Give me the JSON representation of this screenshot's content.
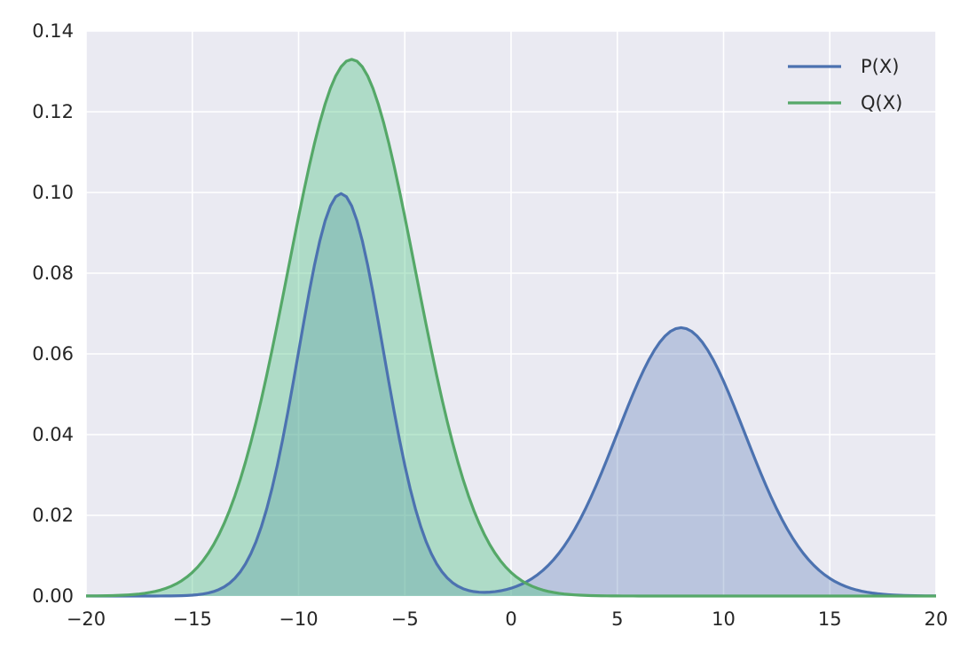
{
  "chart_data": {
    "type": "area",
    "xlim": [
      -20,
      20
    ],
    "ylim": [
      0,
      0.14
    ],
    "xticks": [
      -20,
      -15,
      -10,
      -5,
      0,
      5,
      10,
      15,
      20
    ],
    "xtick_labels": [
      "−20",
      "−15",
      "−10",
      "−5",
      "0",
      "5",
      "10",
      "15",
      "20"
    ],
    "yticks": [
      0.0,
      0.02,
      0.04,
      0.06,
      0.08,
      0.1,
      0.12,
      0.14
    ],
    "ytick_labels": [
      "0.00",
      "0.02",
      "0.04",
      "0.06",
      "0.08",
      "0.10",
      "0.12",
      "0.14"
    ],
    "grid": true,
    "legend_position": "top-right",
    "background": "#eaeaf2",
    "x_sampling": {
      "start": -20,
      "stop": 20,
      "step": 0.25
    },
    "series": [
      {
        "name": "P(X)",
        "color": "#4c72b0",
        "fill": "#4c72b0",
        "fill_opacity": 0.3,
        "description": "mixture of two Gaussians",
        "components": [
          {
            "weight": 0.5,
            "mean": -8,
            "std": 2
          },
          {
            "weight": 0.5,
            "mean": 8,
            "std": 3
          }
        ]
      },
      {
        "name": "Q(X)",
        "color": "#55a868",
        "fill": "#55c687",
        "fill_opacity": 0.4,
        "description": "single Gaussian",
        "components": [
          {
            "weight": 1.0,
            "mean": -7.5,
            "std": 3
          }
        ]
      }
    ]
  }
}
